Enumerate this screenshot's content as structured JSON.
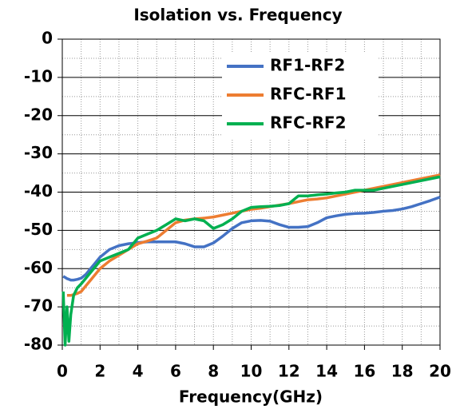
{
  "chart_data": {
    "type": "line",
    "title": "Isolation vs. Frequency",
    "x_label": "Frequency(GHz)",
    "x": [
      0.05,
      0.15,
      0.25,
      0.35,
      0.45,
      0.6,
      0.8,
      1,
      1.25,
      1.5,
      1.75,
      2,
      2.5,
      3,
      3.5,
      4,
      4.5,
      5,
      5.5,
      6,
      6.5,
      7,
      7.5,
      8,
      8.5,
      9,
      9.5,
      10,
      10.5,
      11,
      11.5,
      12,
      12.5,
      13,
      13.5,
      14,
      14.5,
      15,
      15.5,
      16,
      16.5,
      17,
      17.5,
      18,
      18.5,
      19,
      19.5,
      20
    ],
    "series": [
      {
        "name": "RF1-RF2",
        "color": "#4472c4",
        "values": [
          -62,
          -62.3,
          -62.6,
          -62.8,
          -63,
          -63,
          -62.8,
          -62.5,
          -61.5,
          -60,
          -58.5,
          -57,
          -55,
          -54,
          -53.5,
          -53.2,
          -53,
          -53,
          -53,
          -53,
          -53.5,
          -54.3,
          -54.3,
          -53.3,
          -51.5,
          -49.5,
          -48,
          -47.5,
          -47.4,
          -47.6,
          -48.5,
          -49.2,
          -49.2,
          -49,
          -48,
          -46.7,
          -46.2,
          -45.8,
          -45.6,
          -45.5,
          -45.3,
          -45,
          -44.8,
          -44.4,
          -43.8,
          -43,
          -42.2,
          -41.3
        ]
      },
      {
        "name": "RFC-RF1",
        "color": "#ed7d31",
        "values": [
          null,
          null,
          -67,
          -67,
          -67,
          -66.8,
          -66.5,
          -66,
          -64.5,
          -63,
          -61.5,
          -60,
          -58,
          -56.5,
          -55,
          -53.5,
          -52.8,
          -52,
          -50,
          -48,
          -47.3,
          -47,
          -46.8,
          -46.5,
          -46,
          -45.5,
          -45,
          -44.5,
          -44.2,
          -43.8,
          -43.4,
          -43,
          -42.5,
          -42,
          -41.8,
          -41.5,
          -41,
          -40.5,
          -40,
          -39.5,
          -39,
          -38.5,
          -38,
          -37.5,
          -37,
          -36.5,
          -36,
          -35.5
        ]
      },
      {
        "name": "RFC-RF2",
        "color": "#00b050",
        "values": [
          -66,
          -80,
          -70,
          -79,
          -72,
          -67,
          -65,
          -64,
          -62.5,
          -61,
          -59.5,
          -58,
          -57,
          -56,
          -55,
          -52,
          -51,
          -50,
          -48.5,
          -47,
          -47.5,
          -47,
          -47.5,
          -49.5,
          -48.5,
          -47,
          -45,
          -44,
          -43.8,
          -43.7,
          -43.5,
          -43,
          -41,
          -41,
          -40.7,
          -40.5,
          -40.2,
          -40,
          -39.5,
          -39.5,
          -39.5,
          -39,
          -38.5,
          -38,
          -37.5,
          -37,
          -36.5,
          -36
        ]
      }
    ],
    "xlim": [
      0,
      20
    ],
    "xticks": [
      0,
      2,
      4,
      6,
      8,
      10,
      12,
      14,
      16,
      18,
      20
    ],
    "ylim": [
      -80,
      0
    ],
    "yticks": [
      -80,
      -70,
      -60,
      -50,
      -40,
      -30,
      -20,
      -10,
      0
    ],
    "grid": true,
    "legend": "upper right"
  }
}
